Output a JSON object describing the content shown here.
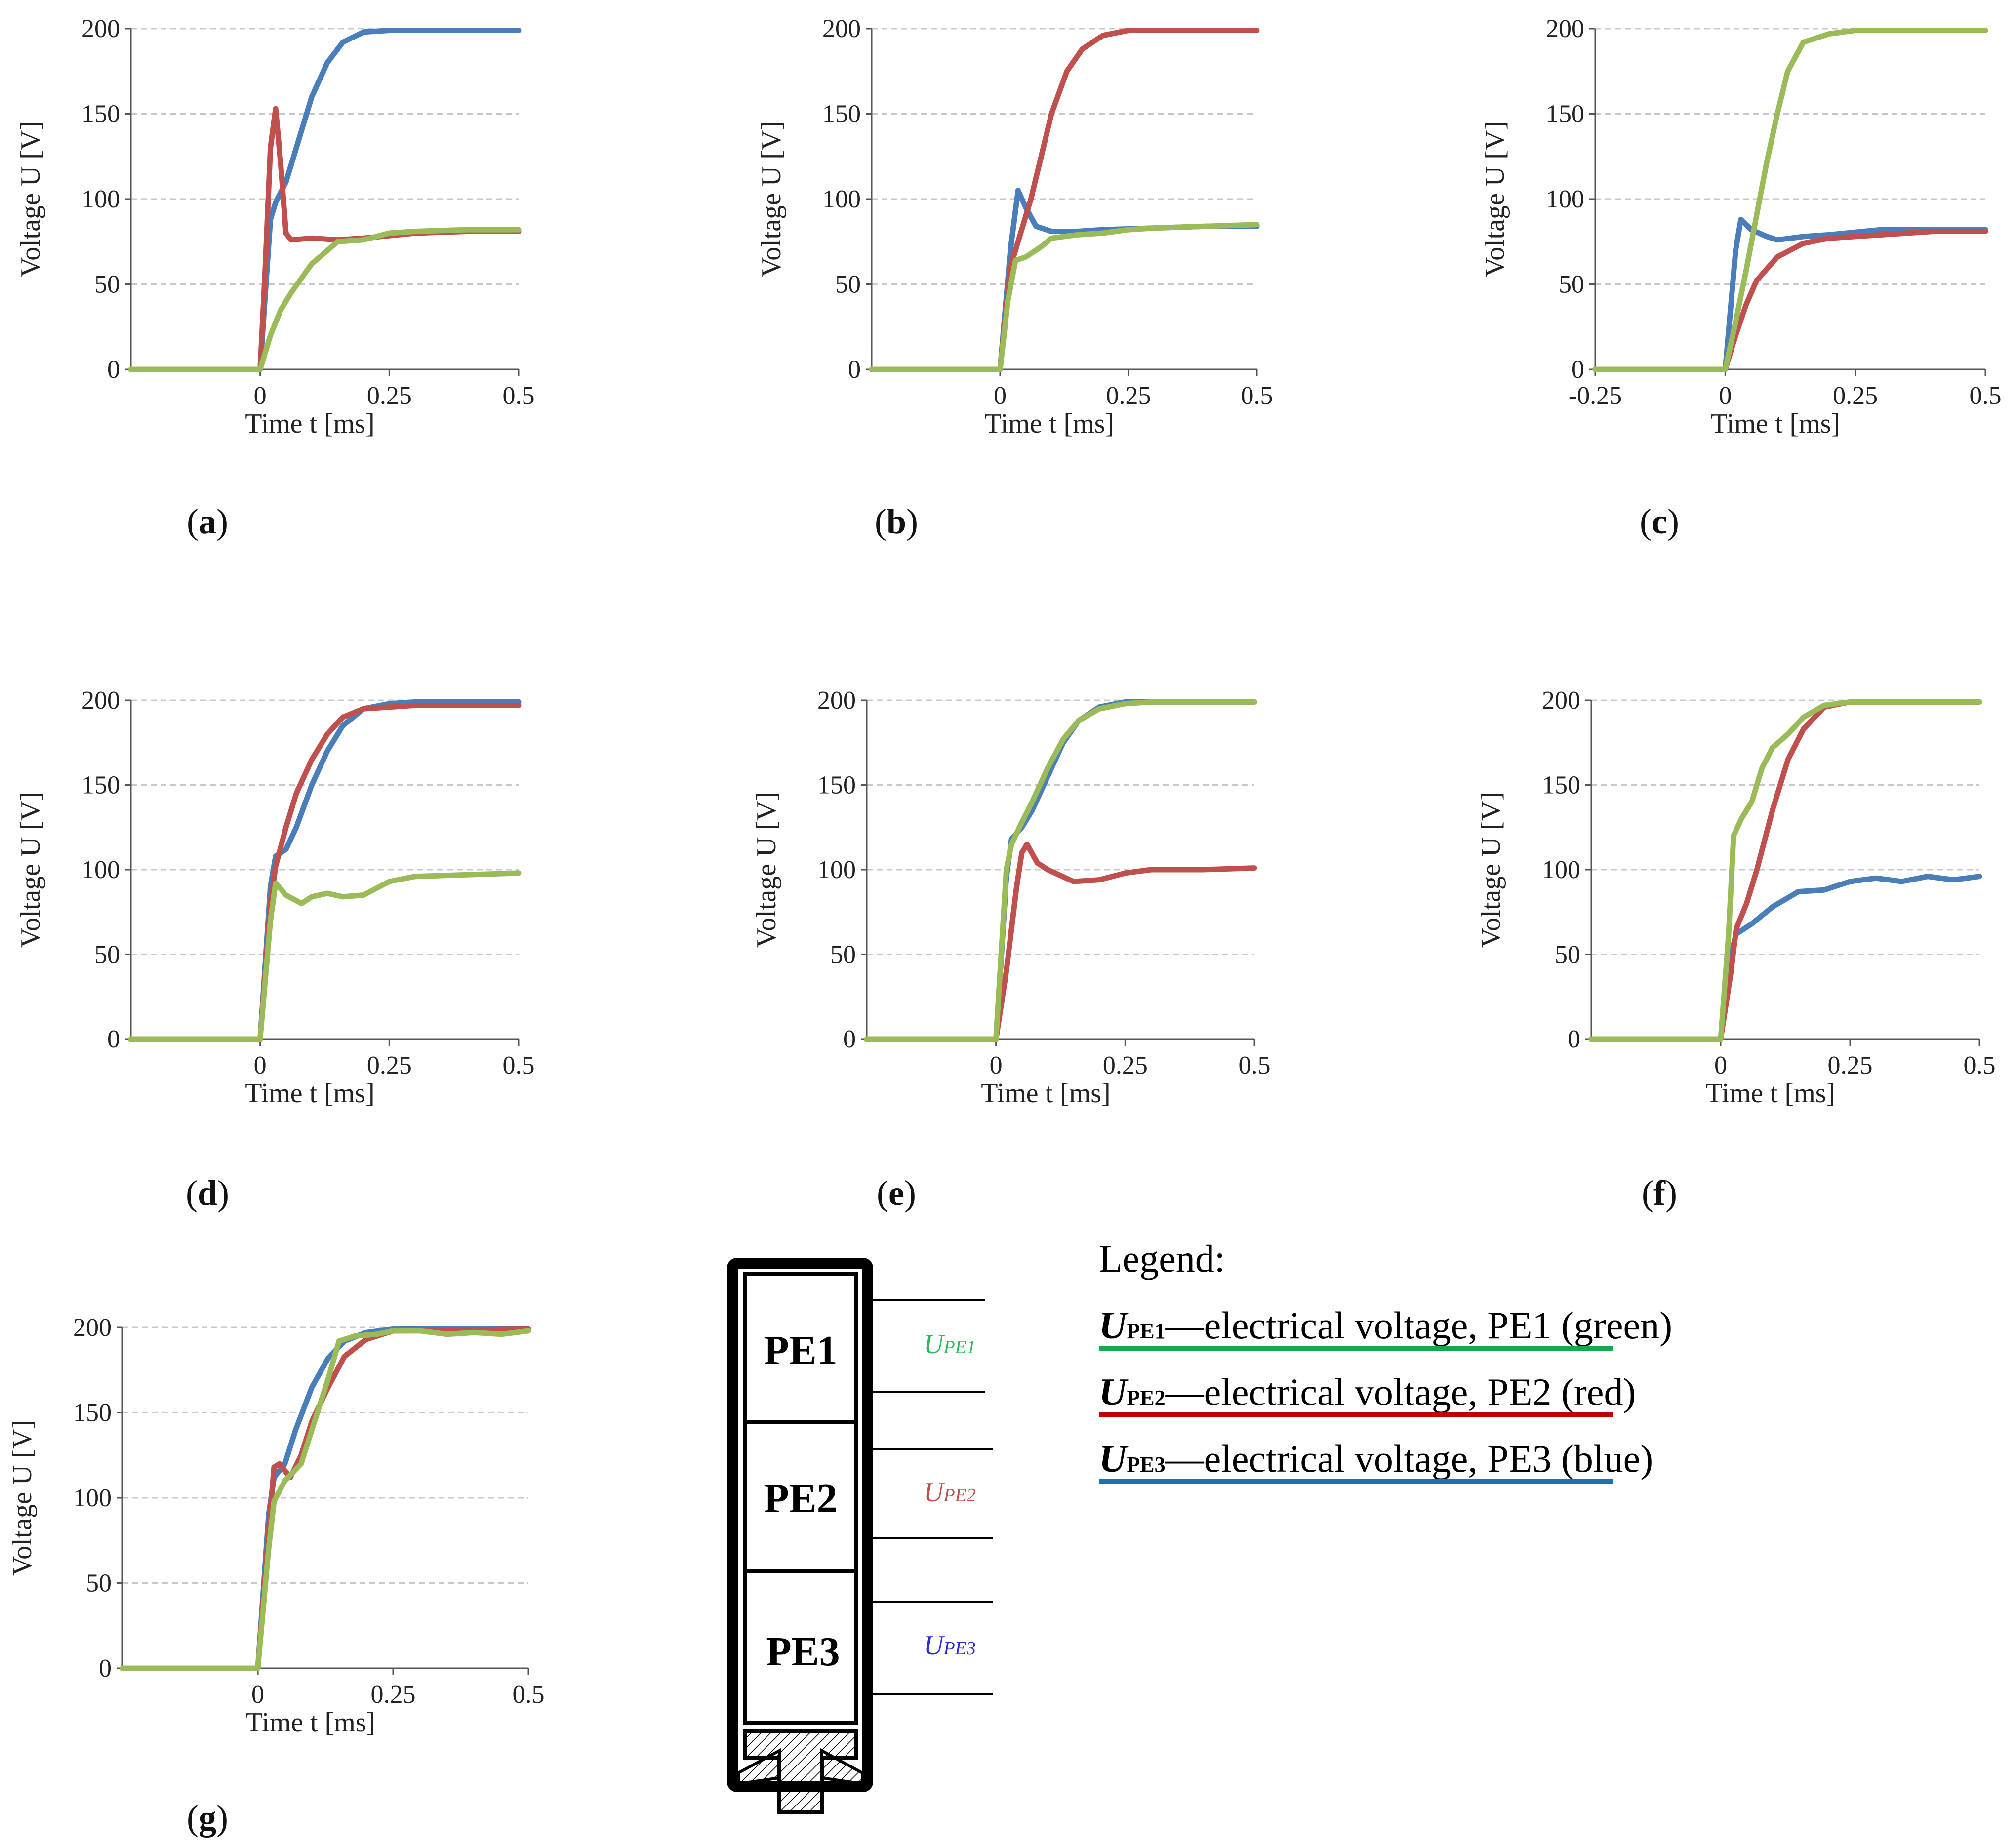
{
  "chart_data": [
    {
      "id": "a",
      "panel_label": "a",
      "type": "line",
      "xlabel": "Time t [ms]",
      "ylabel": "Voltage U [V]",
      "xlim": [
        -0.25,
        0.5
      ],
      "ylim": [
        0,
        200
      ],
      "xticks": [
        "0",
        "0.25",
        "0.5"
      ],
      "yticks": [
        "0",
        "50",
        "100",
        "150",
        "200"
      ],
      "grid": "horizontal dashed",
      "series": [
        {
          "color": "#4a7ebb",
          "x": [
            -0.25,
            0,
            0.02,
            0.03,
            0.05,
            0.07,
            0.1,
            0.13,
            0.16,
            0.2,
            0.25,
            0.3,
            0.4,
            0.5
          ],
          "y": [
            0,
            0,
            88,
            98,
            110,
            130,
            160,
            180,
            192,
            198,
            199,
            199,
            199,
            199
          ]
        },
        {
          "color": "#c0504d",
          "x": [
            -0.25,
            0,
            0.01,
            0.02,
            0.03,
            0.04,
            0.05,
            0.06,
            0.1,
            0.15,
            0.2,
            0.3,
            0.4,
            0.5
          ],
          "y": [
            0,
            0,
            60,
            130,
            153,
            120,
            80,
            76,
            77,
            76,
            77,
            80,
            81,
            81
          ]
        },
        {
          "color": "#9bbb59",
          "x": [
            -0.25,
            0,
            0.02,
            0.04,
            0.06,
            0.1,
            0.15,
            0.2,
            0.25,
            0.3,
            0.4,
            0.5
          ],
          "y": [
            0,
            0,
            20,
            35,
            45,
            62,
            75,
            76,
            80,
            81,
            82,
            82
          ]
        }
      ]
    },
    {
      "id": "b",
      "panel_label": "b",
      "type": "line",
      "xlabel": "Time t [ms]",
      "ylabel": "Voltage U [V]",
      "xlim": [
        -0.25,
        0.5
      ],
      "ylim": [
        0,
        200
      ],
      "xticks": [
        "0",
        "0.25",
        "0.5"
      ],
      "yticks": [
        "0",
        "50",
        "100",
        "150",
        "200"
      ],
      "grid": "horizontal dashed",
      "series": [
        {
          "color": "#4a7ebb",
          "x": [
            -0.25,
            0,
            0.02,
            0.035,
            0.05,
            0.07,
            0.1,
            0.15,
            0.2,
            0.3,
            0.4,
            0.5
          ],
          "y": [
            0,
            0,
            70,
            105,
            95,
            84,
            81,
            81,
            82,
            83,
            84,
            84
          ]
        },
        {
          "color": "#c0504d",
          "x": [
            -0.25,
            0,
            0.02,
            0.04,
            0.06,
            0.08,
            0.1,
            0.13,
            0.16,
            0.2,
            0.25,
            0.3,
            0.5
          ],
          "y": [
            0,
            0,
            60,
            80,
            100,
            125,
            150,
            175,
            188,
            196,
            199,
            199,
            199
          ]
        },
        {
          "color": "#9bbb59",
          "x": [
            -0.25,
            0,
            0.015,
            0.03,
            0.05,
            0.08,
            0.1,
            0.15,
            0.2,
            0.25,
            0.3,
            0.4,
            0.5
          ],
          "y": [
            0,
            0,
            40,
            64,
            66,
            72,
            77,
            79,
            80,
            82,
            83,
            84,
            85
          ]
        }
      ]
    },
    {
      "id": "c",
      "panel_label": "c",
      "type": "line",
      "xlabel": "Time t [ms]",
      "ylabel": "Voltage U [V]",
      "xlim": [
        -0.25,
        0.5
      ],
      "ylim": [
        0,
        200
      ],
      "xticks": [
        "-0.25",
        "0",
        "0.25",
        "0.5"
      ],
      "yticks": [
        "0",
        "50",
        "100",
        "150",
        "200"
      ],
      "grid": "horizontal dashed",
      "series": [
        {
          "color": "#4a7ebb",
          "x": [
            -0.25,
            0,
            0.02,
            0.03,
            0.05,
            0.08,
            0.1,
            0.15,
            0.2,
            0.3,
            0.4,
            0.5
          ],
          "y": [
            0,
            0,
            70,
            88,
            82,
            78,
            76,
            78,
            79,
            82,
            82,
            82
          ]
        },
        {
          "color": "#c0504d",
          "x": [
            -0.25,
            0,
            0.02,
            0.04,
            0.06,
            0.1,
            0.15,
            0.2,
            0.3,
            0.4,
            0.5
          ],
          "y": [
            0,
            0,
            20,
            38,
            52,
            66,
            74,
            77,
            79,
            81,
            81
          ]
        },
        {
          "color": "#9bbb59",
          "x": [
            -0.25,
            0,
            0.02,
            0.04,
            0.06,
            0.08,
            0.1,
            0.12,
            0.15,
            0.2,
            0.25,
            0.3,
            0.5
          ],
          "y": [
            0,
            0,
            28,
            58,
            90,
            122,
            150,
            175,
            192,
            197,
            199,
            199,
            199
          ]
        }
      ]
    },
    {
      "id": "d",
      "panel_label": "d",
      "type": "line",
      "xlabel": "Time t [ms]",
      "ylabel": "Voltage U [V]",
      "xlim": [
        -0.25,
        0.5
      ],
      "ylim": [
        0,
        200
      ],
      "xticks": [
        "0",
        "0.25",
        "0.5"
      ],
      "yticks": [
        "0",
        "50",
        "100",
        "150",
        "200"
      ],
      "grid": "horizontal dashed",
      "series": [
        {
          "color": "#4a7ebb",
          "x": [
            -0.25,
            0,
            0.02,
            0.03,
            0.05,
            0.07,
            0.1,
            0.13,
            0.16,
            0.2,
            0.25,
            0.3,
            0.4,
            0.5
          ],
          "y": [
            0,
            0,
            90,
            108,
            112,
            125,
            150,
            170,
            185,
            195,
            198,
            199,
            199,
            199
          ]
        },
        {
          "color": "#c0504d",
          "x": [
            -0.25,
            0,
            0.02,
            0.03,
            0.05,
            0.07,
            0.1,
            0.13,
            0.16,
            0.2,
            0.25,
            0.3,
            0.4,
            0.5
          ],
          "y": [
            0,
            0,
            80,
            102,
            125,
            145,
            165,
            180,
            190,
            195,
            196,
            197,
            197,
            197
          ]
        },
        {
          "color": "#9bbb59",
          "x": [
            -0.25,
            0,
            0.02,
            0.03,
            0.05,
            0.08,
            0.1,
            0.13,
            0.16,
            0.2,
            0.25,
            0.3,
            0.4,
            0.5
          ],
          "y": [
            0,
            0,
            70,
            92,
            85,
            80,
            84,
            86,
            84,
            85,
            93,
            96,
            97,
            98
          ]
        }
      ]
    },
    {
      "id": "e",
      "panel_label": "e",
      "type": "line",
      "xlabel": "Time t [ms]",
      "ylabel": "Voltage U [V]",
      "xlim": [
        -0.25,
        0.5
      ],
      "ylim": [
        0,
        200
      ],
      "xticks": [
        "0",
        "0.25",
        "0.5"
      ],
      "yticks": [
        "0",
        "50",
        "100",
        "150",
        "200"
      ],
      "grid": "horizontal dashed",
      "series": [
        {
          "color": "#4a7ebb",
          "x": [
            -0.25,
            0,
            0.02,
            0.03,
            0.05,
            0.07,
            0.1,
            0.13,
            0.16,
            0.2,
            0.25,
            0.3,
            0.5
          ],
          "y": [
            0,
            0,
            95,
            118,
            125,
            135,
            155,
            175,
            188,
            196,
            199,
            199,
            199
          ]
        },
        {
          "color": "#c0504d",
          "x": [
            -0.25,
            0,
            0.02,
            0.04,
            0.05,
            0.06,
            0.08,
            0.1,
            0.15,
            0.2,
            0.25,
            0.3,
            0.4,
            0.5
          ],
          "y": [
            0,
            0,
            40,
            90,
            110,
            115,
            104,
            100,
            93,
            94,
            98,
            100,
            100,
            101
          ]
        },
        {
          "color": "#9bbb59",
          "x": [
            -0.25,
            0,
            0.02,
            0.03,
            0.05,
            0.07,
            0.1,
            0.13,
            0.16,
            0.2,
            0.25,
            0.3,
            0.5
          ],
          "y": [
            0,
            0,
            100,
            115,
            128,
            140,
            160,
            177,
            188,
            195,
            198,
            199,
            199
          ]
        }
      ]
    },
    {
      "id": "f",
      "panel_label": "f",
      "type": "line",
      "xlabel": "Time t [ms]",
      "ylabel": "Voltage U [V]",
      "xlim": [
        -0.25,
        0.5
      ],
      "ylim": [
        0,
        200
      ],
      "xticks": [
        "0",
        "0.25",
        "0.5"
      ],
      "yticks": [
        "0",
        "50",
        "100",
        "150",
        "200"
      ],
      "grid": "horizontal dashed",
      "series": [
        {
          "color": "#4a7ebb",
          "x": [
            -0.25,
            0,
            0.02,
            0.03,
            0.06,
            0.1,
            0.15,
            0.2,
            0.25,
            0.3,
            0.35,
            0.4,
            0.45,
            0.5
          ],
          "y": [
            0,
            0,
            50,
            62,
            68,
            78,
            87,
            88,
            93,
            95,
            93,
            96,
            94,
            96
          ]
        },
        {
          "color": "#c0504d",
          "x": [
            -0.25,
            0,
            0.02,
            0.03,
            0.05,
            0.07,
            0.1,
            0.13,
            0.16,
            0.2,
            0.25,
            0.3,
            0.5
          ],
          "y": [
            0,
            0,
            40,
            65,
            80,
            100,
            135,
            165,
            183,
            196,
            199,
            199,
            199
          ]
        },
        {
          "color": "#9bbb59",
          "x": [
            -0.25,
            0,
            0.015,
            0.025,
            0.04,
            0.06,
            0.08,
            0.1,
            0.13,
            0.16,
            0.2,
            0.25,
            0.5
          ],
          "y": [
            0,
            0,
            60,
            120,
            130,
            140,
            160,
            172,
            180,
            190,
            197,
            199,
            199
          ]
        }
      ]
    },
    {
      "id": "g",
      "panel_label": "g",
      "type": "line",
      "xlabel": "Time t [ms]",
      "ylabel": "Voltage U [V]",
      "xlim": [
        -0.25,
        0.5
      ],
      "ylim": [
        0,
        200
      ],
      "xticks": [
        "0",
        "0.25",
        "0.5"
      ],
      "yticks": [
        "0",
        "50",
        "100",
        "150",
        "200"
      ],
      "grid": "horizontal dashed",
      "series": [
        {
          "color": "#4a7ebb",
          "x": [
            -0.25,
            0,
            0.02,
            0.03,
            0.05,
            0.07,
            0.1,
            0.13,
            0.16,
            0.2,
            0.25,
            0.3,
            0.5
          ],
          "y": [
            0,
            0,
            90,
            112,
            120,
            140,
            165,
            182,
            192,
            197,
            199,
            199,
            199
          ]
        },
        {
          "color": "#c0504d",
          "x": [
            -0.25,
            0,
            0.02,
            0.03,
            0.04,
            0.06,
            0.08,
            0.1,
            0.13,
            0.16,
            0.2,
            0.25,
            0.5
          ],
          "y": [
            0,
            0,
            80,
            118,
            120,
            112,
            125,
            145,
            165,
            183,
            193,
            198,
            199
          ]
        },
        {
          "color": "#9bbb59",
          "x": [
            -0.25,
            0,
            0.02,
            0.03,
            0.05,
            0.08,
            0.1,
            0.13,
            0.15,
            0.18,
            0.22,
            0.25,
            0.3,
            0.35,
            0.4,
            0.45,
            0.5
          ],
          "y": [
            0,
            0,
            70,
            98,
            110,
            120,
            140,
            170,
            192,
            195,
            196,
            198,
            198,
            196,
            197,
            196,
            198
          ]
        }
      ]
    }
  ],
  "diagram": {
    "elements": [
      "PE1",
      "PE2",
      "PE3"
    ],
    "voltage_labels": [
      {
        "main": "U",
        "sub": "PE1",
        "color": "#2db85c"
      },
      {
        "main": "U",
        "sub": "PE2",
        "color": "#c0504d"
      },
      {
        "main": "U",
        "sub": "PE3",
        "color": "#2b2bd6"
      }
    ]
  },
  "legend": {
    "title": "Legend:",
    "items": [
      {
        "symbol": "U",
        "sub": "PE1",
        "text": "—electrical voltage, PE1",
        "note": "(green)",
        "color": "#1aa64a"
      },
      {
        "symbol": "U",
        "sub": "PE2",
        "text": "—electrical voltage, PE2",
        "note": "(red)",
        "color": "#c00000"
      },
      {
        "symbol": "U",
        "sub": "PE3",
        "text": "—electrical voltage, PE3",
        "note": "(blue)",
        "color": "#1f6fb5"
      }
    ]
  }
}
